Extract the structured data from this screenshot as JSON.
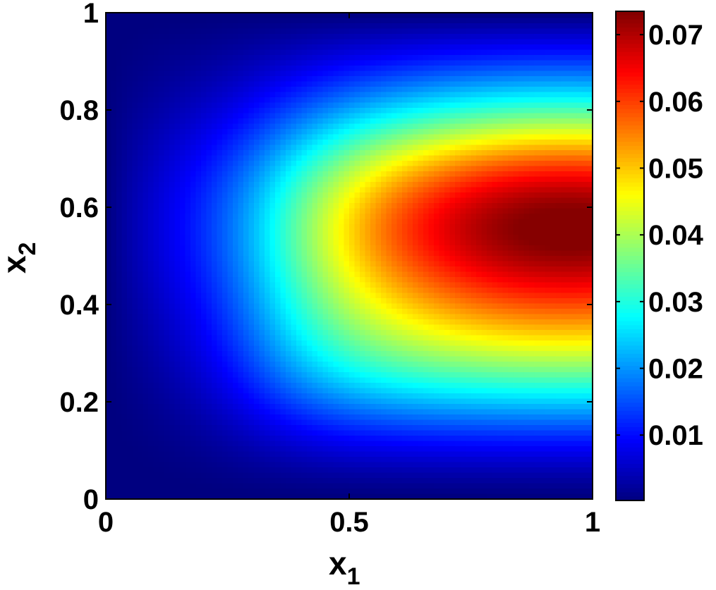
{
  "chart_data": {
    "type": "heatmap",
    "title": "",
    "xlabel": {
      "base": "x",
      "sub": "1"
    },
    "ylabel": {
      "base": "x",
      "sub": "2"
    },
    "xlim": [
      0,
      1
    ],
    "ylim": [
      0,
      1
    ],
    "x_ticks": [
      0,
      0.5,
      1
    ],
    "x_tick_labels": [
      "0",
      "0.5",
      "1"
    ],
    "y_ticks": [
      0,
      0.2,
      0.4,
      0.6,
      0.8,
      1
    ],
    "y_tick_labels": [
      "0",
      "0.2",
      "0.4",
      "0.6",
      "0.8",
      "1"
    ],
    "colormap": "jet",
    "colorbar": {
      "range": [
        0.0002,
        0.0735
      ],
      "ticks": [
        0.01,
        0.02,
        0.03,
        0.04,
        0.05,
        0.06,
        0.07
      ],
      "tick_labels": [
        "0.01",
        "0.02",
        "0.03",
        "0.04",
        "0.05",
        "0.06",
        "0.07"
      ],
      "placement": "right"
    },
    "grid": false,
    "description_of_field": {
      "peak": {
        "x1": 0.95,
        "x2": 0.57,
        "value": 0.073
      },
      "low_edges": [
        "x1 = 0",
        "x2 = 0",
        "x2 = 1"
      ],
      "x1_samples": [
        0,
        0.05,
        0.1,
        0.15,
        0.2,
        0.25,
        0.3,
        0.35,
        0.4,
        0.45,
        0.5,
        0.55,
        0.6,
        0.65,
        0.7,
        0.75,
        0.8,
        0.85,
        0.9,
        0.95,
        1
      ],
      "x2_samples": [
        0,
        0.05,
        0.1,
        0.15,
        0.2,
        0.25,
        0.3,
        0.35,
        0.4,
        0.45,
        0.5,
        0.55,
        0.6,
        0.65,
        0.7,
        0.75,
        0.8,
        0.85,
        0.9,
        0.95,
        1
      ]
    }
  }
}
